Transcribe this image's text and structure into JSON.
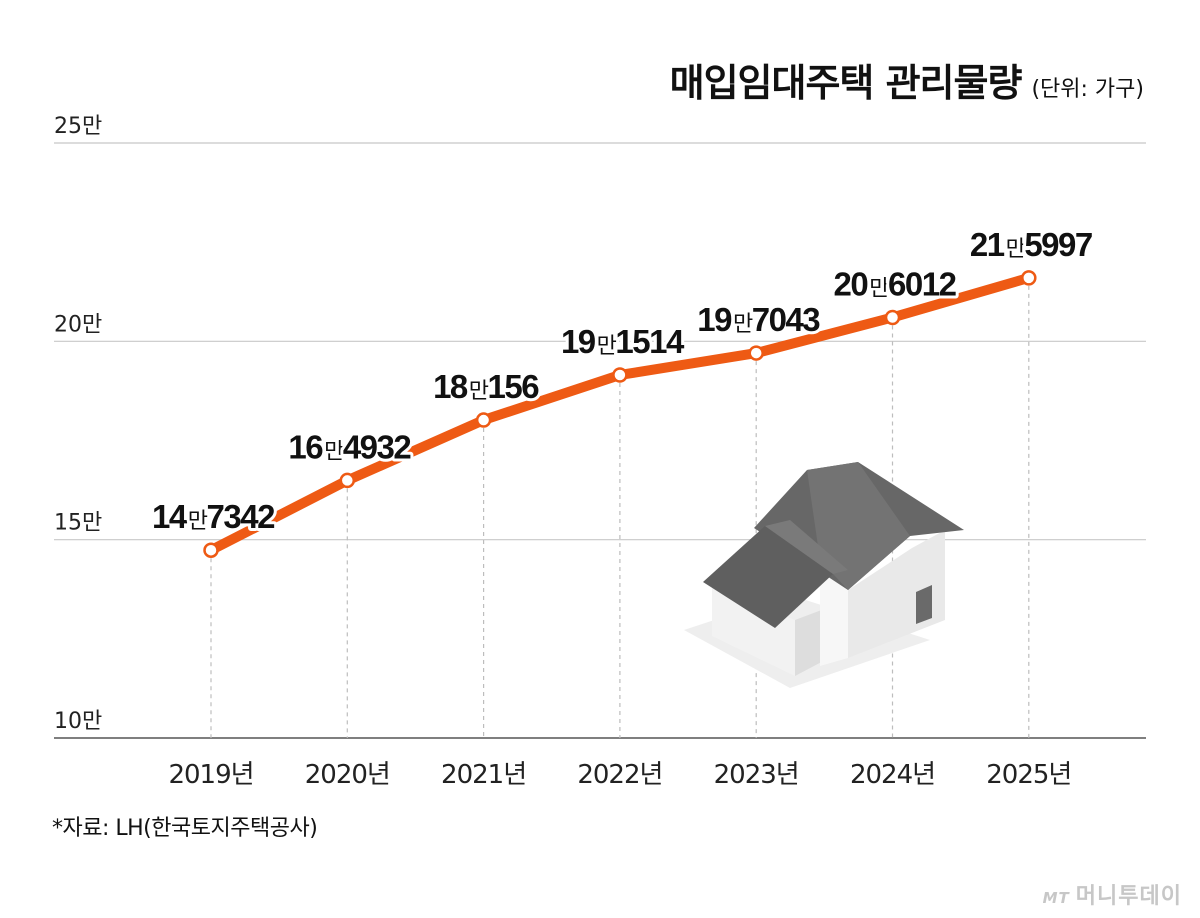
{
  "title": "매입임대주택 관리물량",
  "unit": "(단위: 가구)",
  "source": "*자료: LH(한국토지주택공사)",
  "brand": {
    "mark": "MT",
    "name": "머니투데이"
  },
  "colors": {
    "line": "#ee5a14",
    "grid": "#c8c8c8",
    "text": "#111111",
    "house_roof": "#6b6b6b",
    "house_wall": "#e2e2e2"
  },
  "chart_data": {
    "type": "line",
    "title": "매입임대주택 관리물량",
    "unit": "(단위: 가구)",
    "categories": [
      "2019년",
      "2020년",
      "2021년",
      "2022년",
      "2023년",
      "2024년",
      "2025년"
    ],
    "values": [
      147342,
      164932,
      180156,
      191514,
      197043,
      206012,
      215997
    ],
    "value_labels": [
      {
        "head": "14",
        "man": "만",
        "tail": "7342"
      },
      {
        "head": "16",
        "man": "만",
        "tail": "4932"
      },
      {
        "head": "18",
        "man": "만",
        "tail": "156"
      },
      {
        "head": "19",
        "man": "만",
        "tail": "1514"
      },
      {
        "head": "19",
        "man": "만",
        "tail": "7043"
      },
      {
        "head": "20",
        "man": "만",
        "tail": "6012"
      },
      {
        "head": "21",
        "man": "만",
        "tail": "5997"
      }
    ],
    "y_ticks": [
      {
        "value": 100000,
        "label": "10만"
      },
      {
        "value": 150000,
        "label": "15만"
      },
      {
        "value": 200000,
        "label": "20만"
      },
      {
        "value": 250000,
        "label": "25만"
      }
    ],
    "ylim": [
      100000,
      250000
    ],
    "grid": true,
    "legend": "none"
  }
}
